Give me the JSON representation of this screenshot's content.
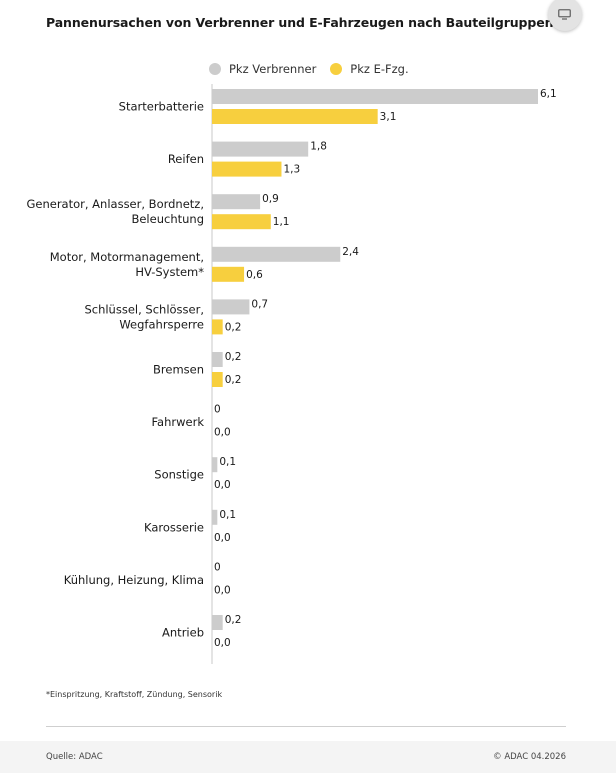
{
  "title": "Pannenursachen von Verbrenner und E-Fahrzeugen nach Bauteilgruppen",
  "legend": {
    "verbrenner": "Pkz Verbrenner",
    "efzg": "Pkz E-Fzg."
  },
  "colors": {
    "verbrenner": "#cccccc",
    "efzg": "#f7cf3e",
    "button": "#e3e3e3"
  },
  "footnote": "*Einspritzung, Kraftstoff, Zündung, Sensorik",
  "source": "Quelle: ADAC",
  "copyright": "© ADAC 04.2026",
  "chart_data": {
    "type": "bar",
    "orientation": "horizontal",
    "title": "Pannenursachen von Verbrenner und E-Fahrzeugen nach Bauteilgruppen",
    "legend_position": "top",
    "grid": false,
    "xlim": [
      0,
      6.1
    ],
    "categories": [
      [
        "Starterbatterie"
      ],
      [
        "Reifen"
      ],
      [
        "Generator, Anlasser, Bordnetz,",
        "Beleuchtung"
      ],
      [
        "Motor, Motormanagement,",
        "HV-System*"
      ],
      [
        "Schlüssel, Schlösser,",
        "Wegfahrsperre"
      ],
      [
        "Bremsen"
      ],
      [
        "Fahrwerk"
      ],
      [
        "Sonstige"
      ],
      [
        "Karosserie"
      ],
      [
        "Kühlung, Heizung, Klima"
      ],
      [
        "Antrieb"
      ]
    ],
    "series": [
      {
        "name": "Pkz Verbrenner",
        "values": [
          6.1,
          1.8,
          0.9,
          2.4,
          0.7,
          0.2,
          0,
          0.1,
          0.1,
          0,
          0.2
        ],
        "labels": [
          "6,1",
          "1,8",
          "0,9",
          "2,4",
          "0,7",
          "0,2",
          "0",
          "0,1",
          "0,1",
          "0",
          "0,2"
        ]
      },
      {
        "name": "Pkz E-Fzg.",
        "values": [
          3.1,
          1.3,
          1.1,
          0.6,
          0.2,
          0.2,
          0.0,
          0.0,
          0.0,
          0.0,
          0.0
        ],
        "labels": [
          "3,1",
          "1,3",
          "1,1",
          "0,6",
          "0,2",
          "0,2",
          "0,0",
          "0,0",
          "0,0",
          "0,0",
          "0,0"
        ]
      }
    ]
  }
}
